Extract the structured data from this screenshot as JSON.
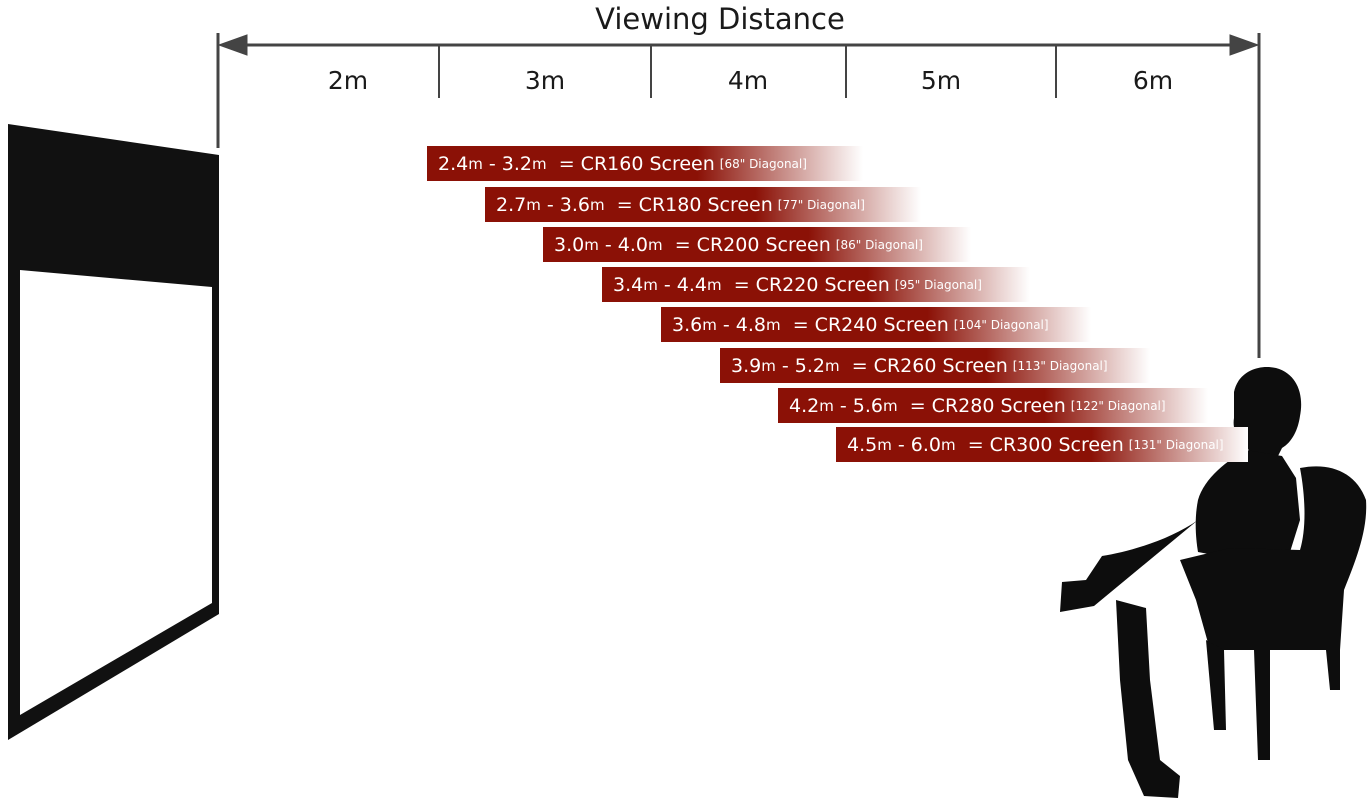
{
  "title": "Viewing Distance",
  "distance_labels": [
    "2m",
    "3m",
    "4m",
    "5m",
    "6m"
  ],
  "rows": [
    {
      "min": "2.4",
      "max": "3.2",
      "unit": "m",
      "screen": "= CR160 Screen",
      "diagonal": "[68\" Diagonal]"
    },
    {
      "min": "2.7",
      "max": "3.6",
      "unit": "m",
      "screen": "= CR180 Screen",
      "diagonal": "[77\" Diagonal]"
    },
    {
      "min": "3.0",
      "max": "4.0",
      "unit": "m",
      "screen": "= CR200 Screen",
      "diagonal": "[86\" Diagonal]"
    },
    {
      "min": "3.4",
      "max": "4.4",
      "unit": "m",
      "screen": "= CR220 Screen",
      "diagonal": "[95\" Diagonal]"
    },
    {
      "min": "3.6",
      "max": "4.8",
      "unit": "m",
      "screen": "= CR240 Screen",
      "diagonal": "[104\" Diagonal]"
    },
    {
      "min": "3.9",
      "max": "5.2",
      "unit": "m",
      "screen": "= CR260 Screen",
      "diagonal": "[113\" Diagonal]"
    },
    {
      "min": "4.2",
      "max": "5.6",
      "unit": "m",
      "screen": "= CR280 Screen",
      "diagonal": "[122\" Diagonal]"
    },
    {
      "min": "4.5",
      "max": "6.0",
      "unit": "m",
      "screen": "= CR300 Screen",
      "diagonal": "[131\" Diagonal]"
    }
  ],
  "colors": {
    "band": "#8b1106",
    "band_fade": "#ffffff",
    "ink": "#111111"
  },
  "icons": [
    "projection-screen-icon",
    "seated-person-silhouette-icon"
  ]
}
